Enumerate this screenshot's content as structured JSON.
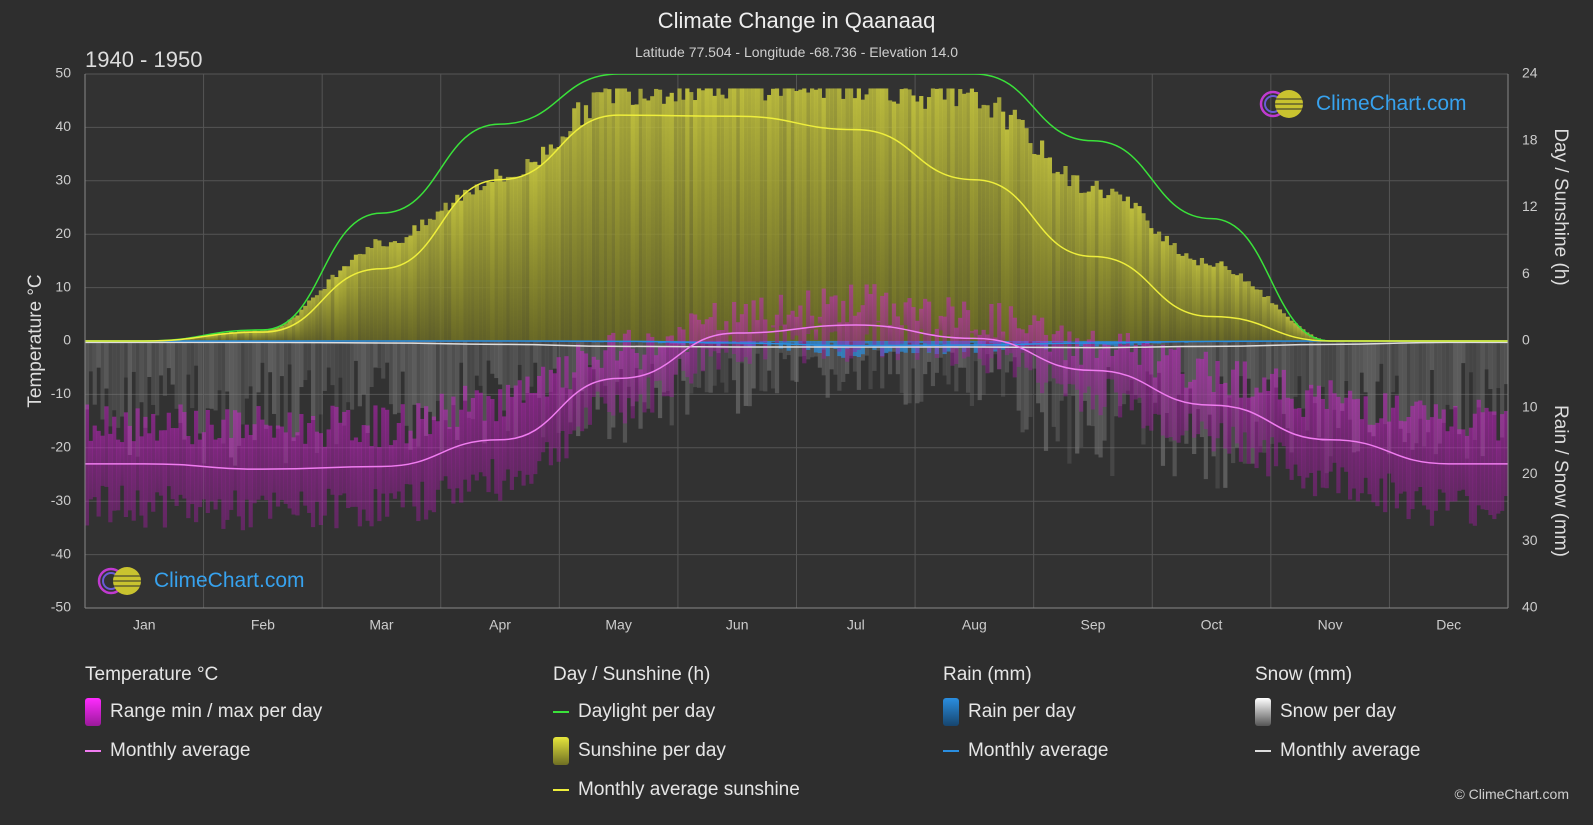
{
  "header": {
    "title": "Climate Change in Qaanaaq",
    "subtitle": "Latitude 77.504 - Longitude -68.736 - Elevation 14.0",
    "period": "1940 - 1950"
  },
  "branding": {
    "logo_text": "ClimeChart.com",
    "copyright": "© ClimeChart.com"
  },
  "colors": {
    "background": "#2e2e2e",
    "temp_range": "#d91ed9",
    "temp_avg": "#f07cf0",
    "daylight": "#3ae23a",
    "sunshine_fill": "#b8b832",
    "sunshine_avg": "#eeee3c",
    "rain": "#2a8ee0",
    "snow": "#bbbbbb",
    "snow_avg": "#dddddd",
    "logo_text": "#37a2ee"
  },
  "legend": {
    "groups": [
      {
        "title": "Temperature °C",
        "items": [
          {
            "label": "Range min / max per day",
            "kind": "box",
            "color": "#d91ed9"
          },
          {
            "label": "Monthly average",
            "kind": "line",
            "color": "#f07cf0"
          }
        ]
      },
      {
        "title": "Day / Sunshine (h)",
        "items": [
          {
            "label": "Daylight per day",
            "kind": "line",
            "color": "#3ae23a"
          },
          {
            "label": "Sunshine per day",
            "kind": "box",
            "color": "#c8c83c"
          },
          {
            "label": "Monthly average sunshine",
            "kind": "line",
            "color": "#eeee3c"
          }
        ]
      },
      {
        "title": "Rain (mm)",
        "items": [
          {
            "label": "Rain per day",
            "kind": "box",
            "color": "#2a8ee0"
          },
          {
            "label": "Monthly average",
            "kind": "line",
            "color": "#2a8ee0"
          }
        ]
      },
      {
        "title": "Snow (mm)",
        "items": [
          {
            "label": "Snow per day",
            "kind": "box",
            "color": "#cccccc"
          },
          {
            "label": "Monthly average",
            "kind": "line",
            "color": "#dddddd"
          }
        ]
      }
    ]
  },
  "chart_data": {
    "type": "area",
    "categories": [
      "Jan",
      "Feb",
      "Mar",
      "Apr",
      "May",
      "Jun",
      "Jul",
      "Aug",
      "Sep",
      "Oct",
      "Nov",
      "Dec"
    ],
    "y_left": {
      "label": "Temperature °C",
      "range": [
        -50,
        50
      ],
      "ticks": [
        "50",
        "40",
        "30",
        "20",
        "10",
        "0",
        "-10",
        "-20",
        "-30",
        "-40",
        "-50"
      ]
    },
    "y_right_top": {
      "label": "Day / Sunshine (h)",
      "range": [
        0,
        24
      ],
      "ticks": [
        "24",
        "18",
        "12",
        "6",
        "0"
      ]
    },
    "y_right_bottom": {
      "label": "Rain / Snow (mm)",
      "range": [
        0,
        40
      ],
      "ticks": [
        "10",
        "20",
        "30",
        "40"
      ]
    },
    "grid": true,
    "series": [
      {
        "name": "Monthly average",
        "group": "temperature",
        "values": [
          -23,
          -24,
          -23.5,
          -18.5,
          -7,
          1.5,
          3,
          0.5,
          -5.5,
          -12,
          -18.5,
          -23
        ]
      },
      {
        "name": "Range min / max per day",
        "group": "temperature",
        "min": [
          -31,
          -32,
          -31,
          -26,
          -12,
          -1,
          0,
          -2,
          -10,
          -18,
          -26,
          -31
        ],
        "max": [
          -15,
          -16,
          -16,
          -11,
          -2,
          4,
          7,
          4,
          -1,
          -6,
          -11,
          -15
        ]
      },
      {
        "name": "Daylight per day",
        "group": "day",
        "values": [
          0,
          1,
          11.5,
          19.5,
          24,
          24,
          24,
          24,
          18,
          11,
          0,
          0
        ]
      },
      {
        "name": "Sunshine per day",
        "group": "day",
        "values": [
          0,
          1,
          9,
          15,
          23,
          23.5,
          23.5,
          22,
          14,
          7,
          0,
          0
        ]
      },
      {
        "name": "Monthly average sunshine",
        "group": "day",
        "values": [
          0,
          0.8,
          6.5,
          14.5,
          20.3,
          20.2,
          19,
          14.5,
          7.6,
          2.2,
          0,
          0
        ]
      },
      {
        "name": "Rain per day",
        "group": "rain",
        "values": [
          0,
          0,
          0,
          0,
          0.1,
          0.4,
          1.2,
          0.9,
          0.4,
          0.1,
          0,
          0
        ]
      },
      {
        "name": "Monthly average",
        "group": "rain",
        "values": [
          0,
          0,
          0,
          0,
          0.05,
          0.3,
          0.7,
          0.6,
          0.3,
          0.05,
          0,
          0
        ]
      },
      {
        "name": "Snow per day",
        "group": "snow",
        "values": [
          8,
          9,
          8,
          7,
          7,
          5,
          4,
          5,
          9,
          10,
          9,
          8
        ]
      },
      {
        "name": "Monthly average",
        "group": "snow",
        "values": [
          0.2,
          0.2,
          0.3,
          0.5,
          0.8,
          0.9,
          0.9,
          0.9,
          1,
          0.8,
          0.5,
          0.2
        ]
      }
    ]
  }
}
